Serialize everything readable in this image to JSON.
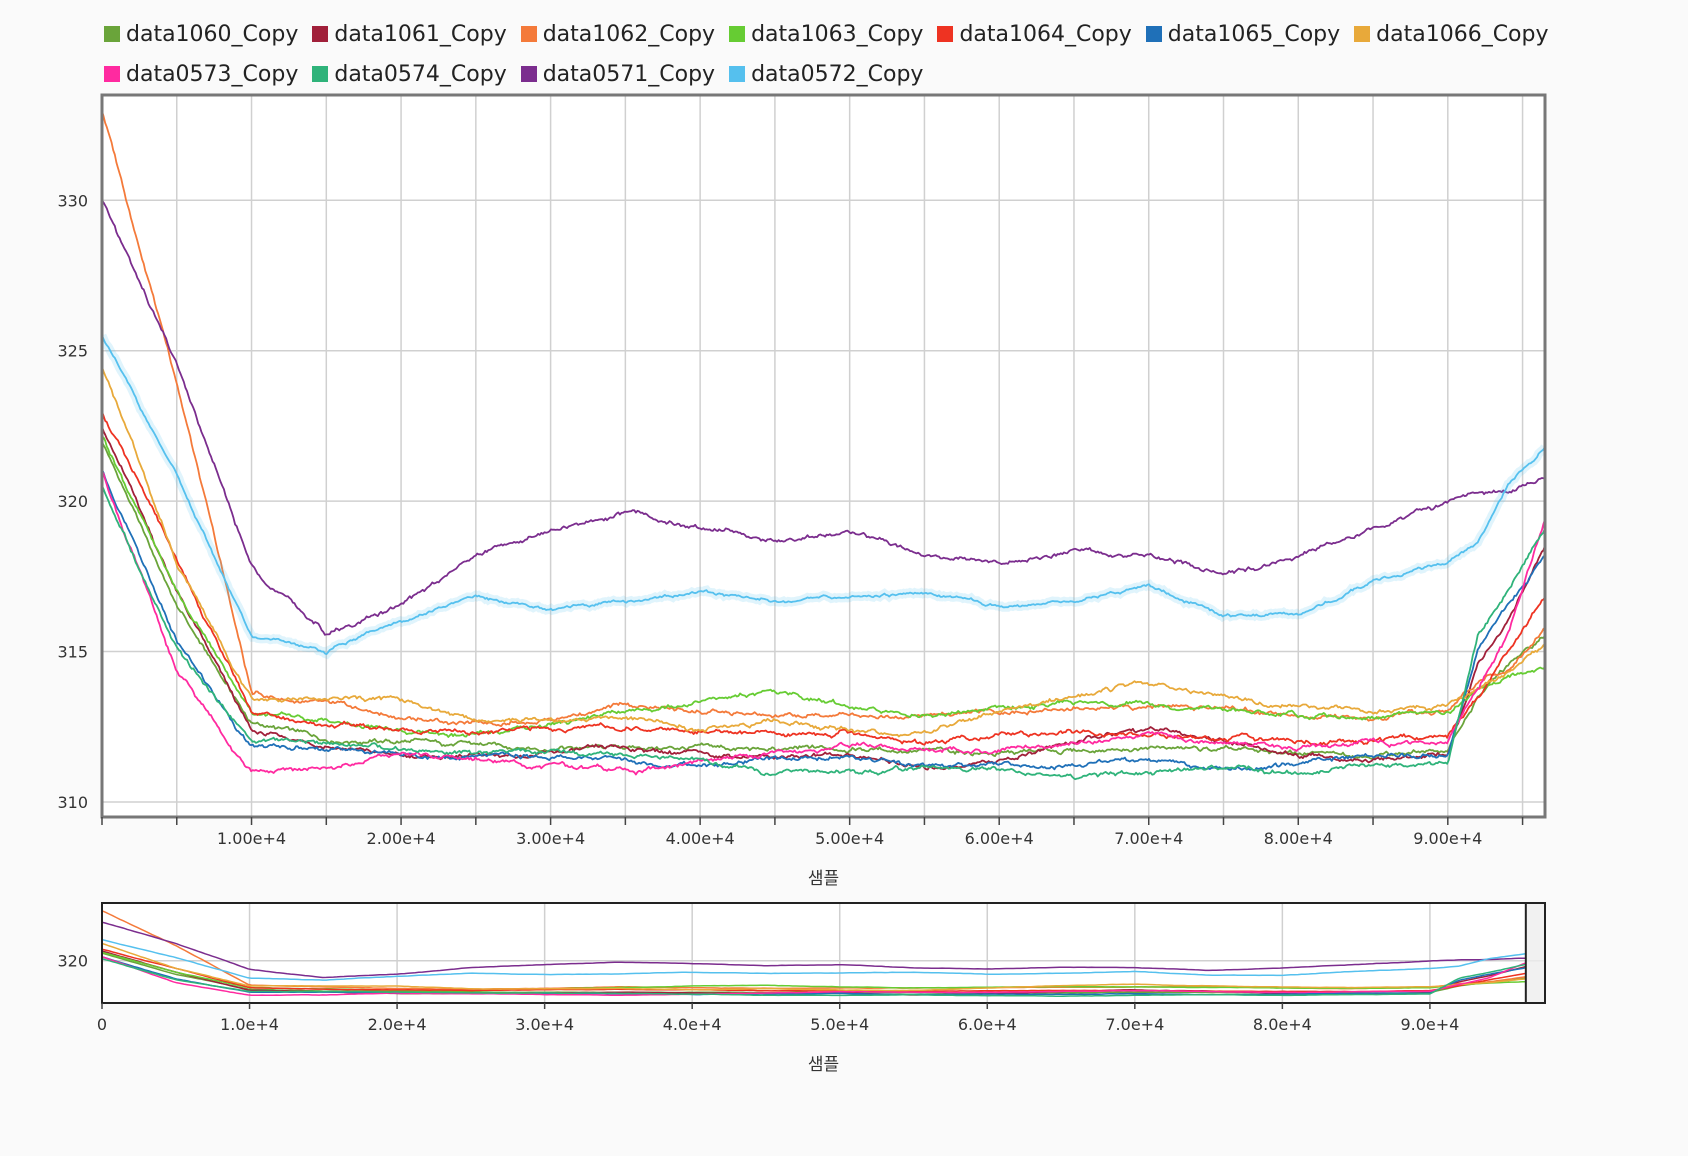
{
  "chart_data": [
    {
      "type": "line",
      "title": "",
      "xlabel": "샘플",
      "ylabel": "",
      "xlim": [
        0,
        96500
      ],
      "ylim": [
        309.5,
        333.5
      ],
      "x_ticks": [
        10000,
        20000,
        30000,
        40000,
        50000,
        60000,
        70000,
        80000,
        90000
      ],
      "x_tick_labels": [
        "1.00e+4",
        "2.00e+4",
        "3.00e+4",
        "4.00e+4",
        "5.00e+4",
        "6.00e+4",
        "7.00e+4",
        "8.00e+4",
        "9.00e+4"
      ],
      "y_ticks": [
        310,
        315,
        320,
        325,
        330
      ],
      "y_tick_labels": [
        "310",
        "315",
        "320",
        "325",
        "330"
      ],
      "grid": true,
      "legend_position": "top",
      "x": [
        0,
        5000,
        10000,
        15000,
        20000,
        25000,
        30000,
        35000,
        40000,
        45000,
        50000,
        55000,
        60000,
        65000,
        70000,
        75000,
        80000,
        85000,
        90000,
        92000,
        94000,
        96500
      ],
      "series": [
        {
          "name": "data1060_Copy",
          "color": "#6aa43a",
          "values": [
            322.0,
            316.5,
            312.6,
            312.1,
            312.0,
            311.9,
            311.8,
            311.8,
            311.8,
            311.7,
            311.8,
            311.7,
            311.6,
            311.7,
            311.8,
            311.7,
            311.6,
            311.6,
            311.7,
            313.5,
            314.5,
            315.5
          ]
        },
        {
          "name": "data1061_Copy",
          "color": "#a1203a",
          "values": [
            322.5,
            317.0,
            312.3,
            311.9,
            311.5,
            311.5,
            311.6,
            311.8,
            311.6,
            311.5,
            311.6,
            311.1,
            311.4,
            312.0,
            312.4,
            312.1,
            311.5,
            311.4,
            311.6,
            314.5,
            316.0,
            318.5
          ]
        },
        {
          "name": "data1062_Copy",
          "color": "#f47a3a",
          "values": [
            333.0,
            324.0,
            313.6,
            313.2,
            312.8,
            312.6,
            312.8,
            313.2,
            313.0,
            312.8,
            312.9,
            312.9,
            313.0,
            313.1,
            313.2,
            313.2,
            312.9,
            312.7,
            313.0,
            314.0,
            314.5,
            315.8
          ]
        },
        {
          "name": "data1063_Copy",
          "color": "#66cc33",
          "values": [
            322.2,
            317.0,
            313.0,
            312.7,
            312.3,
            312.2,
            312.6,
            313.0,
            313.4,
            313.6,
            313.2,
            312.9,
            313.1,
            313.3,
            313.2,
            313.1,
            312.9,
            312.8,
            313.0,
            313.7,
            314.2,
            314.5
          ]
        },
        {
          "name": "data1064_Copy",
          "color": "#ee3322",
          "values": [
            323.0,
            318.0,
            313.0,
            312.6,
            312.4,
            312.3,
            312.4,
            312.5,
            312.4,
            312.2,
            312.3,
            312.0,
            312.2,
            312.3,
            312.2,
            312.1,
            312.0,
            312.0,
            312.2,
            313.5,
            315.0,
            316.7
          ]
        },
        {
          "name": "data1065_Copy",
          "color": "#1f70b8",
          "values": [
            321.0,
            315.3,
            311.8,
            311.8,
            311.6,
            311.5,
            311.5,
            311.4,
            311.2,
            311.4,
            311.5,
            311.2,
            311.3,
            311.2,
            311.4,
            311.1,
            311.3,
            311.5,
            311.6,
            315.0,
            316.5,
            318.2
          ]
        },
        {
          "name": "data1066_Copy",
          "color": "#e8a93a",
          "values": [
            324.5,
            318.0,
            313.4,
            313.4,
            313.4,
            312.7,
            312.7,
            312.8,
            312.4,
            312.7,
            312.4,
            312.3,
            312.9,
            313.5,
            313.9,
            313.5,
            313.2,
            313.0,
            313.2,
            313.8,
            314.3,
            315.3
          ]
        },
        {
          "name": "data0573_Copy",
          "color": "#ff2aa0",
          "values": [
            321.0,
            314.3,
            311.0,
            311.1,
            311.6,
            311.4,
            311.2,
            311.0,
            311.3,
            311.6,
            311.9,
            311.8,
            311.7,
            312.0,
            312.2,
            312.0,
            311.8,
            311.9,
            312.0,
            313.8,
            315.5,
            319.4
          ]
        },
        {
          "name": "data0574_Copy",
          "color": "#2fb37a",
          "values": [
            320.5,
            315.0,
            312.0,
            312.0,
            311.8,
            311.6,
            311.6,
            311.5,
            311.3,
            311.0,
            311.0,
            311.2,
            311.0,
            310.8,
            311.0,
            311.2,
            311.0,
            311.2,
            311.3,
            315.5,
            317.0,
            319.0
          ]
        },
        {
          "name": "data0571_Copy",
          "color": "#7b2d8e",
          "values": [
            330.0,
            324.5,
            317.8,
            315.6,
            316.5,
            318.2,
            319.0,
            319.6,
            319.2,
            318.7,
            319.0,
            318.2,
            317.9,
            318.3,
            318.2,
            317.5,
            318.1,
            319.0,
            319.9,
            320.2,
            320.3,
            320.7
          ]
        },
        {
          "name": "data0572_Copy",
          "color": "#55c0ee",
          "values": [
            325.5,
            320.8,
            315.5,
            315.0,
            316.0,
            316.8,
            316.4,
            316.6,
            317.0,
            316.7,
            316.8,
            317.0,
            316.5,
            316.7,
            317.2,
            316.2,
            316.2,
            317.3,
            318.0,
            318.6,
            320.5,
            321.8
          ]
        }
      ]
    },
    {
      "type": "line",
      "title": "",
      "xlabel": "샘플",
      "ylabel": "",
      "xlim": [
        0,
        97800
      ],
      "ylim": [
        309,
        335
      ],
      "x_ticks": [
        0,
        10000,
        20000,
        30000,
        40000,
        50000,
        60000,
        70000,
        80000,
        90000
      ],
      "x_tick_labels": [
        "0",
        "1.0e+4",
        "2.0e+4",
        "3.0e+4",
        "4.0e+4",
        "5.0e+4",
        "6.0e+4",
        "7.0e+4",
        "8.0e+4",
        "9.0e+4"
      ],
      "y_ticks": [
        320
      ],
      "y_tick_labels": [
        "320"
      ],
      "grid": true,
      "selection_range": [
        96500,
        97800
      ]
    }
  ]
}
